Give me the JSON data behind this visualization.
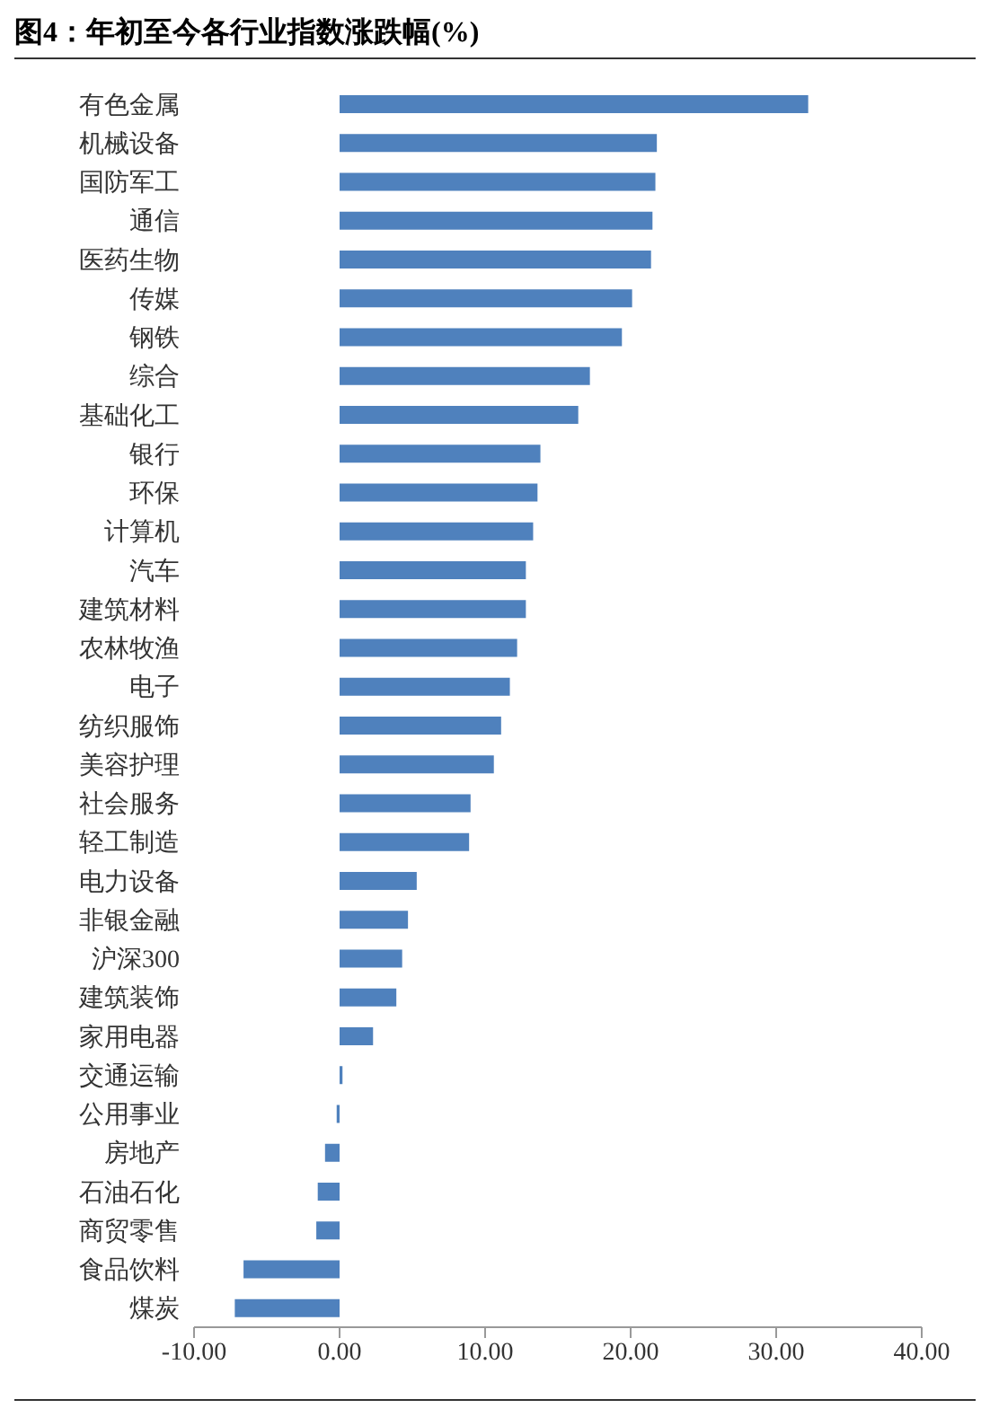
{
  "chart_data": {
    "type": "bar",
    "orientation": "horizontal",
    "title": "图4：年初至今各行业指数涨跌幅(%)",
    "categories": [
      "有色金属",
      "机械设备",
      "国防军工",
      "通信",
      "医药生物",
      "传媒",
      "钢铁",
      "综合",
      "基础化工",
      "银行",
      "环保",
      "计算机",
      "汽车",
      "建筑材料",
      "农林牧渔",
      "电子",
      "纺织服饰",
      "美容护理",
      "社会服务",
      "轻工制造",
      "电力设备",
      "非银金融",
      "沪深300",
      "建筑装饰",
      "家用电器",
      "交通运输",
      "公用事业",
      "房地产",
      "石油石化",
      "商贸零售",
      "食品饮料",
      "煤炭"
    ],
    "values": [
      32.2,
      21.8,
      21.7,
      21.5,
      21.4,
      20.1,
      19.4,
      17.2,
      16.4,
      13.8,
      13.6,
      13.3,
      12.8,
      12.8,
      12.2,
      11.7,
      11.1,
      10.6,
      9.0,
      8.9,
      5.3,
      4.7,
      4.3,
      3.9,
      2.3,
      0.2,
      -0.2,
      -1.0,
      -1.5,
      -1.6,
      -6.6,
      -7.2
    ],
    "color": "#4f81bd",
    "xlim": [
      -10,
      40
    ],
    "xticks": [
      {
        "value": -10,
        "label": "-10.00"
      },
      {
        "value": 0,
        "label": "0.00"
      },
      {
        "value": 10,
        "label": "10.00"
      },
      {
        "value": 20,
        "label": "20.00"
      },
      {
        "value": 30,
        "label": "30.00"
      },
      {
        "value": 40,
        "label": "40.00"
      }
    ],
    "grid": false,
    "legend": false
  }
}
